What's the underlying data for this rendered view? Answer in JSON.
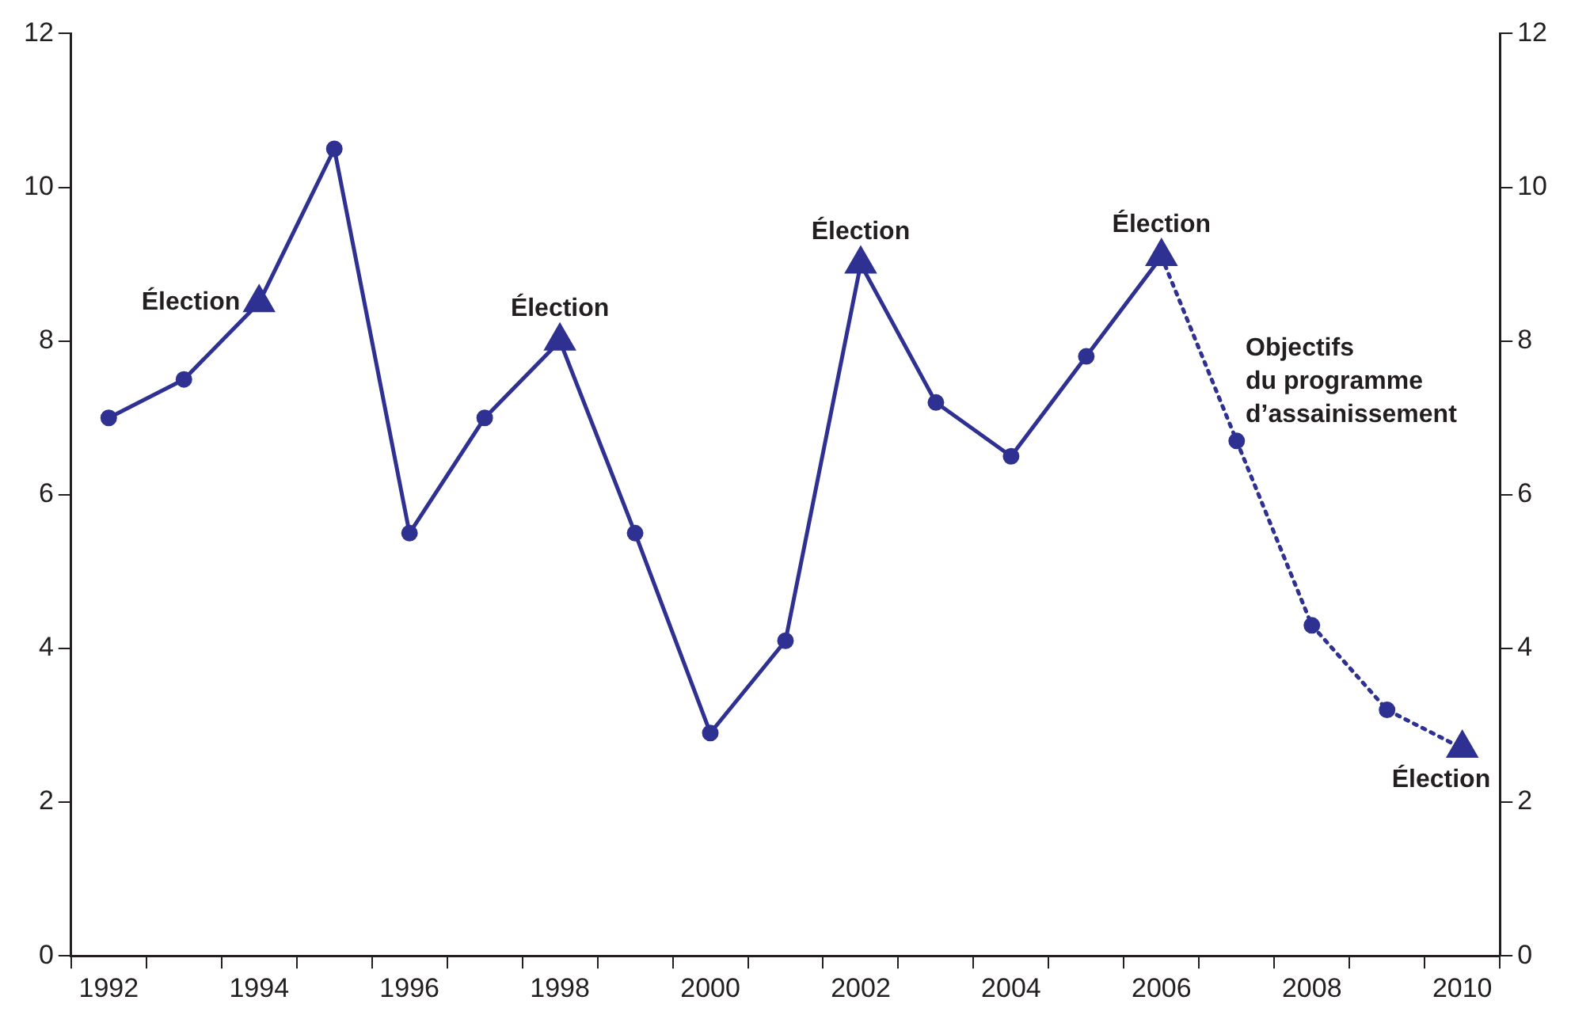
{
  "chart_data": {
    "type": "line",
    "categories": [
      "1992",
      null,
      "1994",
      null,
      "1996",
      null,
      "1998",
      null,
      "2000",
      null,
      "2002",
      null,
      "2004",
      null,
      "2006",
      null,
      "2008",
      null,
      "2010"
    ],
    "series": [
      {
        "color": "#2e3192",
        "marker": "circle",
        "line_style": "solid",
        "values": [
          7.0,
          7.5,
          8.5,
          10.5,
          5.5,
          7.0,
          8.0,
          5.5,
          2.9,
          4.1,
          9.0,
          7.2,
          6.5,
          7.8,
          9.1,
          null,
          null,
          null,
          null
        ]
      },
      {
        "color": "#2e3192",
        "marker": "circle",
        "line_style": "dotted",
        "values": [
          null,
          null,
          null,
          null,
          null,
          null,
          null,
          null,
          null,
          null,
          null,
          null,
          null,
          null,
          9.1,
          6.7,
          4.3,
          3.2,
          2.7
        ]
      },
      {
        "type": "scatter",
        "color": "#2e3192",
        "marker": "triangle",
        "values": [
          null,
          null,
          8.5,
          null,
          null,
          null,
          8.0,
          null,
          null,
          null,
          9.0,
          null,
          null,
          null,
          9.1,
          null,
          null,
          null,
          2.7
        ]
      }
    ],
    "ylim": [
      0,
      12
    ],
    "yticks": [
      0,
      2,
      4,
      6,
      8,
      10,
      12
    ],
    "y2lim": [
      0,
      12
    ],
    "y2ticks": [
      0,
      2,
      4,
      6,
      8,
      10,
      12
    ],
    "grid": false,
    "legend": false,
    "annotations": [
      {
        "text": "Élection",
        "x": "1994",
        "y": 8.5
      },
      {
        "text": "Élection",
        "x": "1998",
        "y": 8.0
      },
      {
        "text": "Élection",
        "x": "2002",
        "y": 9.0
      },
      {
        "text": "Élection",
        "x": "2006",
        "y": 9.1
      },
      {
        "text": "Élection",
        "x": "2010",
        "y": 2.7
      },
      "Objectifs\ndu programme\nd’assainissement"
    ]
  }
}
